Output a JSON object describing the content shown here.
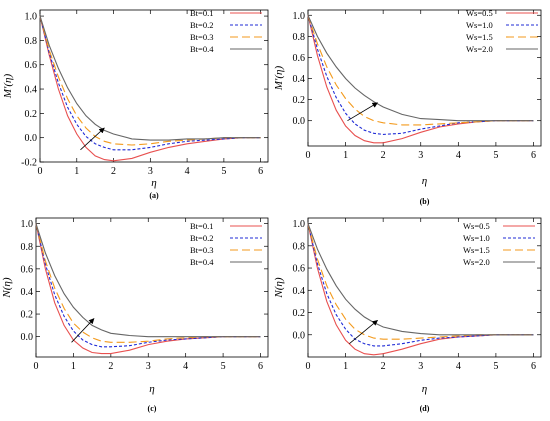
{
  "chart_data": [
    {
      "type": "line",
      "panel_label": "(a)",
      "xlabel": "η",
      "ylabel": "M'(η)",
      "xlim": [
        0,
        6.2
      ],
      "ylim": [
        -0.2,
        1.05
      ],
      "xticks": [
        0,
        1,
        2,
        3,
        4,
        5,
        6
      ],
      "yticks": [
        -0.2,
        0.0,
        0.2,
        0.4,
        0.6,
        0.8,
        1.0
      ],
      "ytick_labels": [
        "-0.2",
        "0.0",
        "0.2",
        "0.4",
        "0.6",
        "0.8",
        "1.0"
      ],
      "legend": "top-right",
      "arrow": {
        "from": [
          1.1,
          -0.1
        ],
        "to": [
          1.75,
          0.08
        ]
      },
      "series": [
        {
          "name": "Bt=0.1",
          "color": "#e8504f",
          "dash": "solid",
          "x": [
            0,
            0.25,
            0.5,
            0.75,
            1,
            1.25,
            1.5,
            1.75,
            2,
            2.5,
            3,
            3.5,
            4,
            4.5,
            5,
            5.5,
            6
          ],
          "y": [
            1.0,
            0.68,
            0.4,
            0.18,
            0.03,
            -0.08,
            -0.15,
            -0.18,
            -0.19,
            -0.17,
            -0.12,
            -0.08,
            -0.05,
            -0.03,
            -0.01,
            0.0,
            0.0
          ]
        },
        {
          "name": "Bt=0.2",
          "color": "#1f2bd6",
          "dash": "3,2",
          "x": [
            0,
            0.25,
            0.5,
            0.75,
            1,
            1.25,
            1.5,
            1.75,
            2,
            2.5,
            3,
            3.5,
            4,
            4.5,
            5,
            5.5,
            6
          ],
          "y": [
            1.0,
            0.7,
            0.45,
            0.25,
            0.11,
            0.01,
            -0.05,
            -0.08,
            -0.1,
            -0.1,
            -0.08,
            -0.05,
            -0.03,
            -0.02,
            -0.01,
            0.0,
            0.0
          ]
        },
        {
          "name": "Bt=0.3",
          "color": "#f39a1c",
          "dash": "8,4",
          "x": [
            0,
            0.25,
            0.5,
            0.75,
            1,
            1.25,
            1.5,
            1.75,
            2,
            2.5,
            3,
            3.5,
            4,
            4.5,
            5,
            5.5,
            6
          ],
          "y": [
            1.0,
            0.72,
            0.5,
            0.32,
            0.18,
            0.08,
            0.01,
            -0.03,
            -0.05,
            -0.06,
            -0.05,
            -0.03,
            -0.02,
            -0.01,
            0.0,
            0.0,
            0.0
          ]
        },
        {
          "name": "Bt=0.4",
          "color": "#666666",
          "dash": "solid",
          "x": [
            0,
            0.25,
            0.5,
            0.75,
            1,
            1.25,
            1.5,
            1.75,
            2,
            2.5,
            3,
            3.5,
            4,
            4.5,
            5,
            5.5,
            6
          ],
          "y": [
            1.0,
            0.76,
            0.57,
            0.41,
            0.28,
            0.18,
            0.11,
            0.06,
            0.03,
            -0.01,
            -0.02,
            -0.02,
            -0.01,
            -0.01,
            0.0,
            0.0,
            0.0
          ]
        }
      ]
    },
    {
      "type": "line",
      "panel_label": "(b)",
      "xlabel": "η",
      "ylabel": "M'(η)",
      "xlim": [
        0,
        6.2
      ],
      "ylim": [
        -0.24,
        1.05
      ],
      "xticks": [
        0,
        1,
        2,
        3,
        4,
        5,
        6
      ],
      "yticks": [
        0.0,
        0.2,
        0.4,
        0.6,
        0.8,
        1.0
      ],
      "ytick_labels": [
        "0.0",
        "0.2",
        "0.4",
        "0.6",
        "0.8",
        "1.0"
      ],
      "legend": "top-right",
      "arrow": {
        "from": [
          1.05,
          0.0
        ],
        "to": [
          1.85,
          0.17
        ]
      },
      "series": [
        {
          "name": "Ws=0.5",
          "color": "#e8504f",
          "dash": "solid",
          "x": [
            0,
            0.25,
            0.5,
            0.75,
            1,
            1.25,
            1.5,
            1.75,
            2,
            2.5,
            3,
            3.5,
            4,
            4.5,
            5,
            5.5,
            6
          ],
          "y": [
            1.0,
            0.62,
            0.32,
            0.1,
            -0.05,
            -0.14,
            -0.19,
            -0.21,
            -0.21,
            -0.17,
            -0.11,
            -0.06,
            -0.03,
            -0.01,
            0.0,
            0.0,
            0.0
          ]
        },
        {
          "name": "Ws=1.0",
          "color": "#1f2bd6",
          "dash": "3,2",
          "x": [
            0,
            0.25,
            0.5,
            0.75,
            1,
            1.25,
            1.5,
            1.75,
            2,
            2.5,
            3,
            3.5,
            4,
            4.5,
            5,
            5.5,
            6
          ],
          "y": [
            1.0,
            0.68,
            0.42,
            0.22,
            0.07,
            -0.03,
            -0.09,
            -0.12,
            -0.13,
            -0.12,
            -0.08,
            -0.05,
            -0.02,
            -0.01,
            0.0,
            0.0,
            0.0
          ]
        },
        {
          "name": "Ws=1.5",
          "color": "#f39a1c",
          "dash": "8,4",
          "x": [
            0,
            0.25,
            0.5,
            0.75,
            1,
            1.25,
            1.5,
            1.75,
            2,
            2.5,
            3,
            3.5,
            4,
            4.5,
            5,
            5.5,
            6
          ],
          "y": [
            1.0,
            0.73,
            0.51,
            0.34,
            0.21,
            0.11,
            0.04,
            0.0,
            -0.02,
            -0.04,
            -0.04,
            -0.03,
            -0.02,
            -0.01,
            0.0,
            0.0,
            0.0
          ]
        },
        {
          "name": "Ws=2.0",
          "color": "#666666",
          "dash": "solid",
          "x": [
            0,
            0.25,
            0.5,
            0.75,
            1,
            1.25,
            1.5,
            1.75,
            2,
            2.5,
            3,
            3.5,
            4,
            4.5,
            5,
            5.5,
            6
          ],
          "y": [
            1.0,
            0.8,
            0.64,
            0.51,
            0.4,
            0.31,
            0.24,
            0.18,
            0.13,
            0.06,
            0.02,
            0.01,
            0.0,
            0.0,
            0.0,
            0.0,
            0.0
          ]
        }
      ]
    },
    {
      "type": "line",
      "panel_label": "(c)",
      "xlabel": "η",
      "ylabel": "N(η)",
      "xlim": [
        0,
        6.2
      ],
      "ylim": [
        -0.18,
        1.05
      ],
      "xticks": [
        0,
        1,
        2,
        3,
        4,
        5,
        6
      ],
      "yticks": [
        0.0,
        0.2,
        0.4,
        0.6,
        0.8,
        1.0
      ],
      "ytick_labels": [
        "0.0",
        "0.2",
        "0.4",
        "0.6",
        "0.8",
        "1.0"
      ],
      "legend": "top-right",
      "arrow": {
        "from": [
          0.95,
          -0.05
        ],
        "to": [
          1.55,
          0.16
        ]
      },
      "series": [
        {
          "name": "Bt=0.1",
          "color": "#e8504f",
          "dash": "solid",
          "x": [
            0,
            0.25,
            0.5,
            0.75,
            1,
            1.25,
            1.5,
            1.75,
            2,
            2.5,
            3,
            3.5,
            4,
            4.5,
            5,
            5.5,
            6
          ],
          "y": [
            1.0,
            0.6,
            0.3,
            0.1,
            -0.03,
            -0.1,
            -0.14,
            -0.15,
            -0.15,
            -0.12,
            -0.07,
            -0.04,
            -0.02,
            -0.01,
            0.0,
            0.0,
            0.0
          ]
        },
        {
          "name": "Bt=0.2",
          "color": "#1f2bd6",
          "dash": "3,2",
          "x": [
            0,
            0.25,
            0.5,
            0.75,
            1,
            1.25,
            1.5,
            1.75,
            2,
            2.5,
            3,
            3.5,
            4,
            4.5,
            5,
            5.5,
            6
          ],
          "y": [
            1.0,
            0.64,
            0.37,
            0.18,
            0.05,
            -0.03,
            -0.07,
            -0.09,
            -0.09,
            -0.08,
            -0.05,
            -0.03,
            -0.02,
            -0.01,
            0.0,
            0.0,
            0.0
          ]
        },
        {
          "name": "Bt=0.3",
          "color": "#f39a1c",
          "dash": "8,4",
          "x": [
            0,
            0.25,
            0.5,
            0.75,
            1,
            1.25,
            1.5,
            1.75,
            2,
            2.5,
            3,
            3.5,
            4,
            4.5,
            5,
            5.5,
            6
          ],
          "y": [
            1.0,
            0.67,
            0.43,
            0.25,
            0.12,
            0.04,
            -0.01,
            -0.04,
            -0.05,
            -0.05,
            -0.04,
            -0.02,
            -0.01,
            0.0,
            0.0,
            0.0,
            0.0
          ]
        },
        {
          "name": "Bt=0.4",
          "color": "#666666",
          "dash": "solid",
          "x": [
            0,
            0.25,
            0.5,
            0.75,
            1,
            1.25,
            1.5,
            1.75,
            2,
            2.5,
            3,
            3.5,
            4,
            4.5,
            5,
            5.5,
            6
          ],
          "y": [
            1.0,
            0.74,
            0.54,
            0.38,
            0.26,
            0.17,
            0.1,
            0.06,
            0.03,
            0.01,
            0.0,
            0.0,
            0.0,
            0.0,
            0.0,
            0.0,
            0.0
          ]
        }
      ]
    },
    {
      "type": "line",
      "panel_label": "(d)",
      "xlabel": "η",
      "ylabel": "N(η)",
      "xlim": [
        0,
        6.2
      ],
      "ylim": [
        -0.2,
        1.05
      ],
      "xticks": [
        0,
        1,
        2,
        3,
        4,
        5,
        6
      ],
      "yticks": [
        0.0,
        0.2,
        0.4,
        0.6,
        0.8,
        1.0
      ],
      "ytick_labels": [
        "0.0",
        "0.2",
        "0.4",
        "0.6",
        "0.8",
        "1.0"
      ],
      "legend": "top-right",
      "arrow": {
        "from": [
          1.1,
          -0.08
        ],
        "to": [
          1.85,
          0.13
        ]
      },
      "series": [
        {
          "name": "Ws=0.5",
          "color": "#e8504f",
          "dash": "solid",
          "x": [
            0,
            0.25,
            0.5,
            0.75,
            1,
            1.25,
            1.5,
            1.75,
            2,
            2.5,
            3,
            3.5,
            4,
            4.5,
            5,
            5.5,
            6
          ],
          "y": [
            1.0,
            0.6,
            0.3,
            0.09,
            -0.05,
            -0.13,
            -0.17,
            -0.18,
            -0.17,
            -0.13,
            -0.08,
            -0.04,
            -0.02,
            -0.01,
            0.0,
            0.0,
            0.0
          ]
        },
        {
          "name": "Ws=1.0",
          "color": "#1f2bd6",
          "dash": "3,2",
          "x": [
            0,
            0.25,
            0.5,
            0.75,
            1,
            1.25,
            1.5,
            1.75,
            2,
            2.5,
            3,
            3.5,
            4,
            4.5,
            5,
            5.5,
            6
          ],
          "y": [
            1.0,
            0.64,
            0.37,
            0.18,
            0.05,
            -0.04,
            -0.08,
            -0.1,
            -0.1,
            -0.08,
            -0.05,
            -0.03,
            -0.02,
            -0.01,
            0.0,
            0.0,
            0.0
          ]
        },
        {
          "name": "Ws=1.5",
          "color": "#f39a1c",
          "dash": "8,4",
          "x": [
            0,
            0.25,
            0.5,
            0.75,
            1,
            1.25,
            1.5,
            1.75,
            2,
            2.5,
            3,
            3.5,
            4,
            4.5,
            5,
            5.5,
            6
          ],
          "y": [
            1.0,
            0.68,
            0.44,
            0.27,
            0.14,
            0.05,
            0.0,
            -0.03,
            -0.04,
            -0.04,
            -0.03,
            -0.02,
            -0.01,
            0.0,
            0.0,
            0.0,
            0.0
          ]
        },
        {
          "name": "Ws=2.0",
          "color": "#666666",
          "dash": "solid",
          "x": [
            0,
            0.25,
            0.5,
            0.75,
            1,
            1.25,
            1.5,
            1.75,
            2,
            2.5,
            3,
            3.5,
            4,
            4.5,
            5,
            5.5,
            6
          ],
          "y": [
            1.0,
            0.77,
            0.59,
            0.44,
            0.32,
            0.23,
            0.16,
            0.11,
            0.07,
            0.03,
            0.01,
            0.0,
            0.0,
            0.0,
            0.0,
            0.0,
            0.0
          ]
        }
      ]
    }
  ]
}
